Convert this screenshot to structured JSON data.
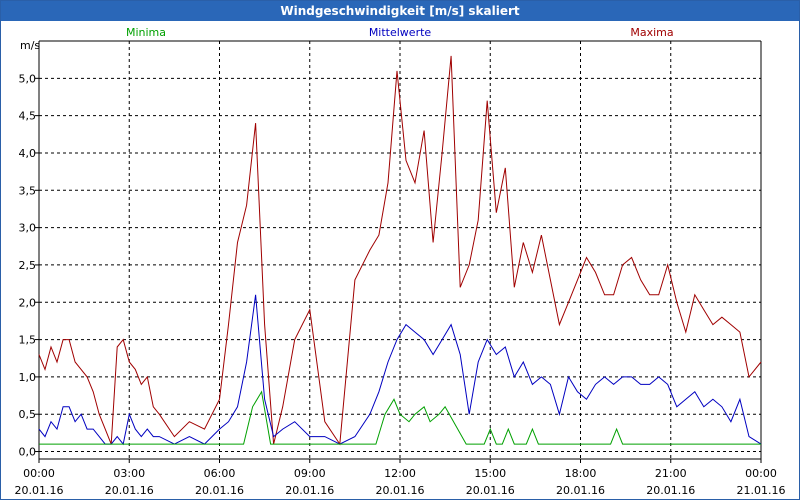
{
  "window": {
    "title": "Windgeschwindigkeit [m/s] skaliert"
  },
  "chart_data": {
    "type": "line",
    "title": "Windgeschwindigkeit [m/s] skaliert",
    "ylabel": "m/s",
    "ylim": [
      -0.1,
      5.5
    ],
    "yticks": [
      "0,0",
      "0,5",
      "1,0",
      "1,5",
      "2,0",
      "2,5",
      "3,0",
      "3,5",
      "4,0",
      "4,5",
      "5,0"
    ],
    "xlim": [
      0,
      24
    ],
    "xticks": [
      {
        "time": "00:00",
        "date": "20.01.16"
      },
      {
        "time": "03:00",
        "date": "20.01.16"
      },
      {
        "time": "06:00",
        "date": "20.01.16"
      },
      {
        "time": "09:00",
        "date": "20.01.16"
      },
      {
        "time": "12:00",
        "date": "20.01.16"
      },
      {
        "time": "15:00",
        "date": "20.01.16"
      },
      {
        "time": "18:00",
        "date": "20.01.16"
      },
      {
        "time": "21:00",
        "date": "20.01.16"
      },
      {
        "time": "00:00",
        "date": "21.01.16"
      }
    ],
    "grid": true,
    "series": [
      {
        "name": "Minima",
        "color": "#00a000",
        "x": [
          0,
          6.8,
          7.1,
          7.4,
          7.7,
          11.2,
          11.5,
          11.8,
          12.0,
          12.3,
          12.5,
          12.8,
          13.0,
          13.3,
          13.5,
          14.2,
          14.8,
          15.0,
          15.2,
          15.4,
          15.6,
          15.8,
          16.0,
          16.2,
          16.4,
          16.6,
          17.0,
          19.0,
          19.2,
          19.4,
          24.0
        ],
        "y": [
          0.1,
          0.1,
          0.6,
          0.8,
          0.1,
          0.1,
          0.5,
          0.7,
          0.5,
          0.4,
          0.5,
          0.6,
          0.4,
          0.5,
          0.6,
          0.1,
          0.1,
          0.3,
          0.1,
          0.1,
          0.3,
          0.1,
          0.1,
          0.1,
          0.3,
          0.1,
          0.1,
          0.1,
          0.3,
          0.1,
          0.1
        ]
      },
      {
        "name": "Mittelwerte",
        "color": "#0000c0",
        "x": [
          0,
          0.2,
          0.4,
          0.6,
          0.8,
          1.0,
          1.2,
          1.4,
          1.6,
          1.8,
          2.0,
          2.2,
          2.4,
          2.6,
          2.8,
          3.0,
          3.2,
          3.4,
          3.6,
          3.8,
          4.0,
          4.5,
          5.0,
          5.5,
          6.0,
          6.3,
          6.6,
          6.9,
          7.2,
          7.5,
          7.8,
          8.1,
          8.5,
          9.0,
          9.5,
          10.0,
          10.5,
          11.0,
          11.3,
          11.6,
          11.9,
          12.2,
          12.5,
          12.8,
          13.1,
          13.4,
          13.7,
          14.0,
          14.3,
          14.6,
          14.9,
          15.2,
          15.5,
          15.8,
          16.1,
          16.4,
          16.7,
          17.0,
          17.3,
          17.6,
          17.9,
          18.2,
          18.5,
          18.8,
          19.1,
          19.4,
          19.7,
          20.0,
          20.3,
          20.6,
          20.9,
          21.2,
          21.5,
          21.8,
          22.1,
          22.4,
          22.7,
          23.0,
          23.3,
          23.6,
          24.0
        ],
        "y": [
          0.3,
          0.2,
          0.4,
          0.3,
          0.6,
          0.6,
          0.4,
          0.5,
          0.3,
          0.3,
          0.2,
          0.1,
          0.1,
          0.2,
          0.1,
          0.5,
          0.3,
          0.2,
          0.3,
          0.2,
          0.2,
          0.1,
          0.2,
          0.1,
          0.3,
          0.4,
          0.6,
          1.2,
          2.1,
          0.7,
          0.2,
          0.3,
          0.4,
          0.2,
          0.2,
          0.1,
          0.2,
          0.5,
          0.8,
          1.2,
          1.5,
          1.7,
          1.6,
          1.5,
          1.3,
          1.5,
          1.7,
          1.3,
          0.5,
          1.2,
          1.5,
          1.3,
          1.4,
          1.0,
          1.2,
          0.9,
          1.0,
          0.9,
          0.5,
          1.0,
          0.8,
          0.7,
          0.9,
          1.0,
          0.9,
          1.0,
          1.0,
          0.9,
          0.9,
          1.0,
          0.9,
          0.6,
          0.7,
          0.8,
          0.6,
          0.7,
          0.6,
          0.4,
          0.7,
          0.2,
          0.1
        ]
      },
      {
        "name": "Maxima",
        "color": "#a00000",
        "x": [
          0,
          0.2,
          0.4,
          0.6,
          0.8,
          1.0,
          1.2,
          1.4,
          1.6,
          1.8,
          2.0,
          2.2,
          2.4,
          2.6,
          2.8,
          3.0,
          3.2,
          3.4,
          3.6,
          3.8,
          4.0,
          4.5,
          5.0,
          5.5,
          6.0,
          6.3,
          6.6,
          6.9,
          7.2,
          7.5,
          7.8,
          8.1,
          8.5,
          9.0,
          9.5,
          10.0,
          10.5,
          11.0,
          11.3,
          11.6,
          11.9,
          12.2,
          12.5,
          12.8,
          13.1,
          13.4,
          13.7,
          14.0,
          14.3,
          14.6,
          14.9,
          15.2,
          15.5,
          15.8,
          16.1,
          16.4,
          16.7,
          17.0,
          17.3,
          17.6,
          17.9,
          18.2,
          18.5,
          18.8,
          19.1,
          19.4,
          19.7,
          20.0,
          20.3,
          20.6,
          20.9,
          21.2,
          21.5,
          21.8,
          22.1,
          22.4,
          22.7,
          23.0,
          23.3,
          23.6,
          24.0
        ],
        "y": [
          1.3,
          1.1,
          1.4,
          1.2,
          1.5,
          1.5,
          1.2,
          1.1,
          1.0,
          0.8,
          0.5,
          0.3,
          0.1,
          1.4,
          1.5,
          1.2,
          1.1,
          0.9,
          1.0,
          0.6,
          0.5,
          0.2,
          0.4,
          0.3,
          0.7,
          1.7,
          2.8,
          3.3,
          4.4,
          1.7,
          0.1,
          0.6,
          1.5,
          1.9,
          0.4,
          0.1,
          2.3,
          2.7,
          2.9,
          3.6,
          5.1,
          3.9,
          3.6,
          4.3,
          2.8,
          4.0,
          5.3,
          2.2,
          2.5,
          3.1,
          4.7,
          3.2,
          3.8,
          2.2,
          2.8,
          2.4,
          2.9,
          2.3,
          1.7,
          2.0,
          2.3,
          2.6,
          2.4,
          2.1,
          2.1,
          2.5,
          2.6,
          2.3,
          2.1,
          2.1,
          2.5,
          2.0,
          1.6,
          2.1,
          1.9,
          1.7,
          1.8,
          1.7,
          1.6,
          1.0,
          1.2
        ]
      }
    ]
  }
}
